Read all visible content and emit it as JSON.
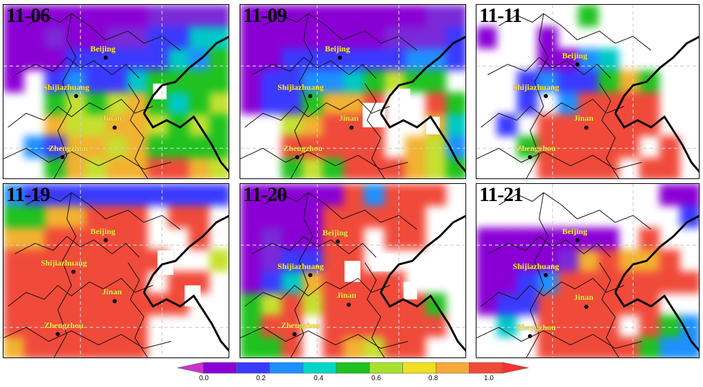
{
  "panels": [
    {
      "date": "11-06"
    },
    {
      "date": "11-09"
    },
    {
      "date": "11-11"
    },
    {
      "date": "11-19"
    },
    {
      "date": "11-20"
    },
    {
      "date": "11-21"
    }
  ],
  "cities": [
    "Beijing",
    "Shijiazhuang",
    "Jinan",
    "Zhengzhou"
  ],
  "colorbar": {
    "ticks": [
      "0.0",
      "0.2",
      "0.4",
      "0.6",
      "0.8",
      "1.0"
    ],
    "colors": [
      "#cc33cc",
      "#8a00d4",
      "#3a3aff",
      "#1e90ff",
      "#00d7c8",
      "#1fc21f",
      "#a6e22e",
      "#f0e020",
      "#f7a93a",
      "#f04a3a",
      "#ff3030"
    ]
  }
}
